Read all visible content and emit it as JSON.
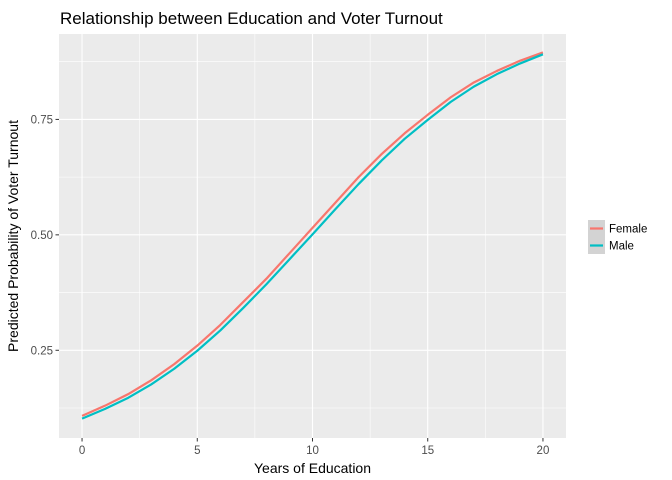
{
  "chart_data": {
    "type": "line",
    "title": "Relationship between Education and Voter Turnout",
    "xlabel": "Years of Education",
    "ylabel": "Predicted Probability of Voter Turnout",
    "xlim": [
      -1,
      21
    ],
    "ylim": [
      0.06,
      0.935
    ],
    "x_ticks": [
      0,
      5,
      10,
      15,
      20
    ],
    "x_tick_labels": [
      "0",
      "5",
      "10",
      "15",
      "20"
    ],
    "y_ticks": [
      0.25,
      0.5,
      0.75
    ],
    "y_tick_labels": [
      "0.25",
      "0.50",
      "0.75"
    ],
    "grid": true,
    "legend_position": "right",
    "x": [
      0,
      1,
      2,
      3,
      4,
      5,
      6,
      7,
      8,
      9,
      10,
      11,
      12,
      13,
      14,
      15,
      16,
      17,
      18,
      19,
      20
    ],
    "series": [
      {
        "name": "Female",
        "color": "#F8766D",
        "values": [
          0.108,
          0.13,
          0.155,
          0.185,
          0.22,
          0.26,
          0.305,
          0.355,
          0.405,
          0.46,
          0.515,
          0.57,
          0.625,
          0.675,
          0.72,
          0.76,
          0.798,
          0.83,
          0.855,
          0.877,
          0.895
        ]
      },
      {
        "name": "Male",
        "color": "#00BFC4",
        "values": [
          0.102,
          0.123,
          0.147,
          0.176,
          0.21,
          0.249,
          0.293,
          0.342,
          0.393,
          0.447,
          0.501,
          0.556,
          0.61,
          0.661,
          0.708,
          0.749,
          0.788,
          0.821,
          0.848,
          0.871,
          0.891
        ]
      }
    ]
  }
}
